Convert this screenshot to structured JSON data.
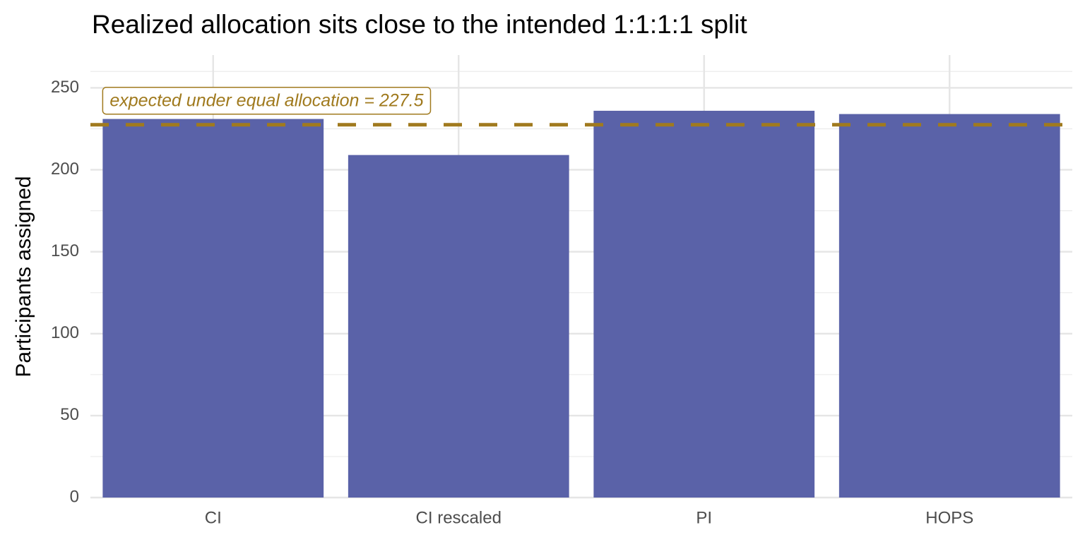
{
  "chart_data": {
    "type": "bar",
    "title": "Realized allocation sits close to the intended 1:1:1:1 split",
    "y_label": "Participants assigned",
    "categories": [
      "CI",
      "CI rescaled",
      "PI",
      "HOPS"
    ],
    "values": [
      231,
      209,
      236,
      234
    ],
    "color": "#5a62a8",
    "ylim": [
      0,
      270
    ],
    "yticks": [
      0,
      50,
      100,
      150,
      200,
      250
    ],
    "grid": true,
    "reference": {
      "value": 227.5,
      "label": "expected under equal allocation = 227.5",
      "color": "#a07a1e"
    }
  }
}
